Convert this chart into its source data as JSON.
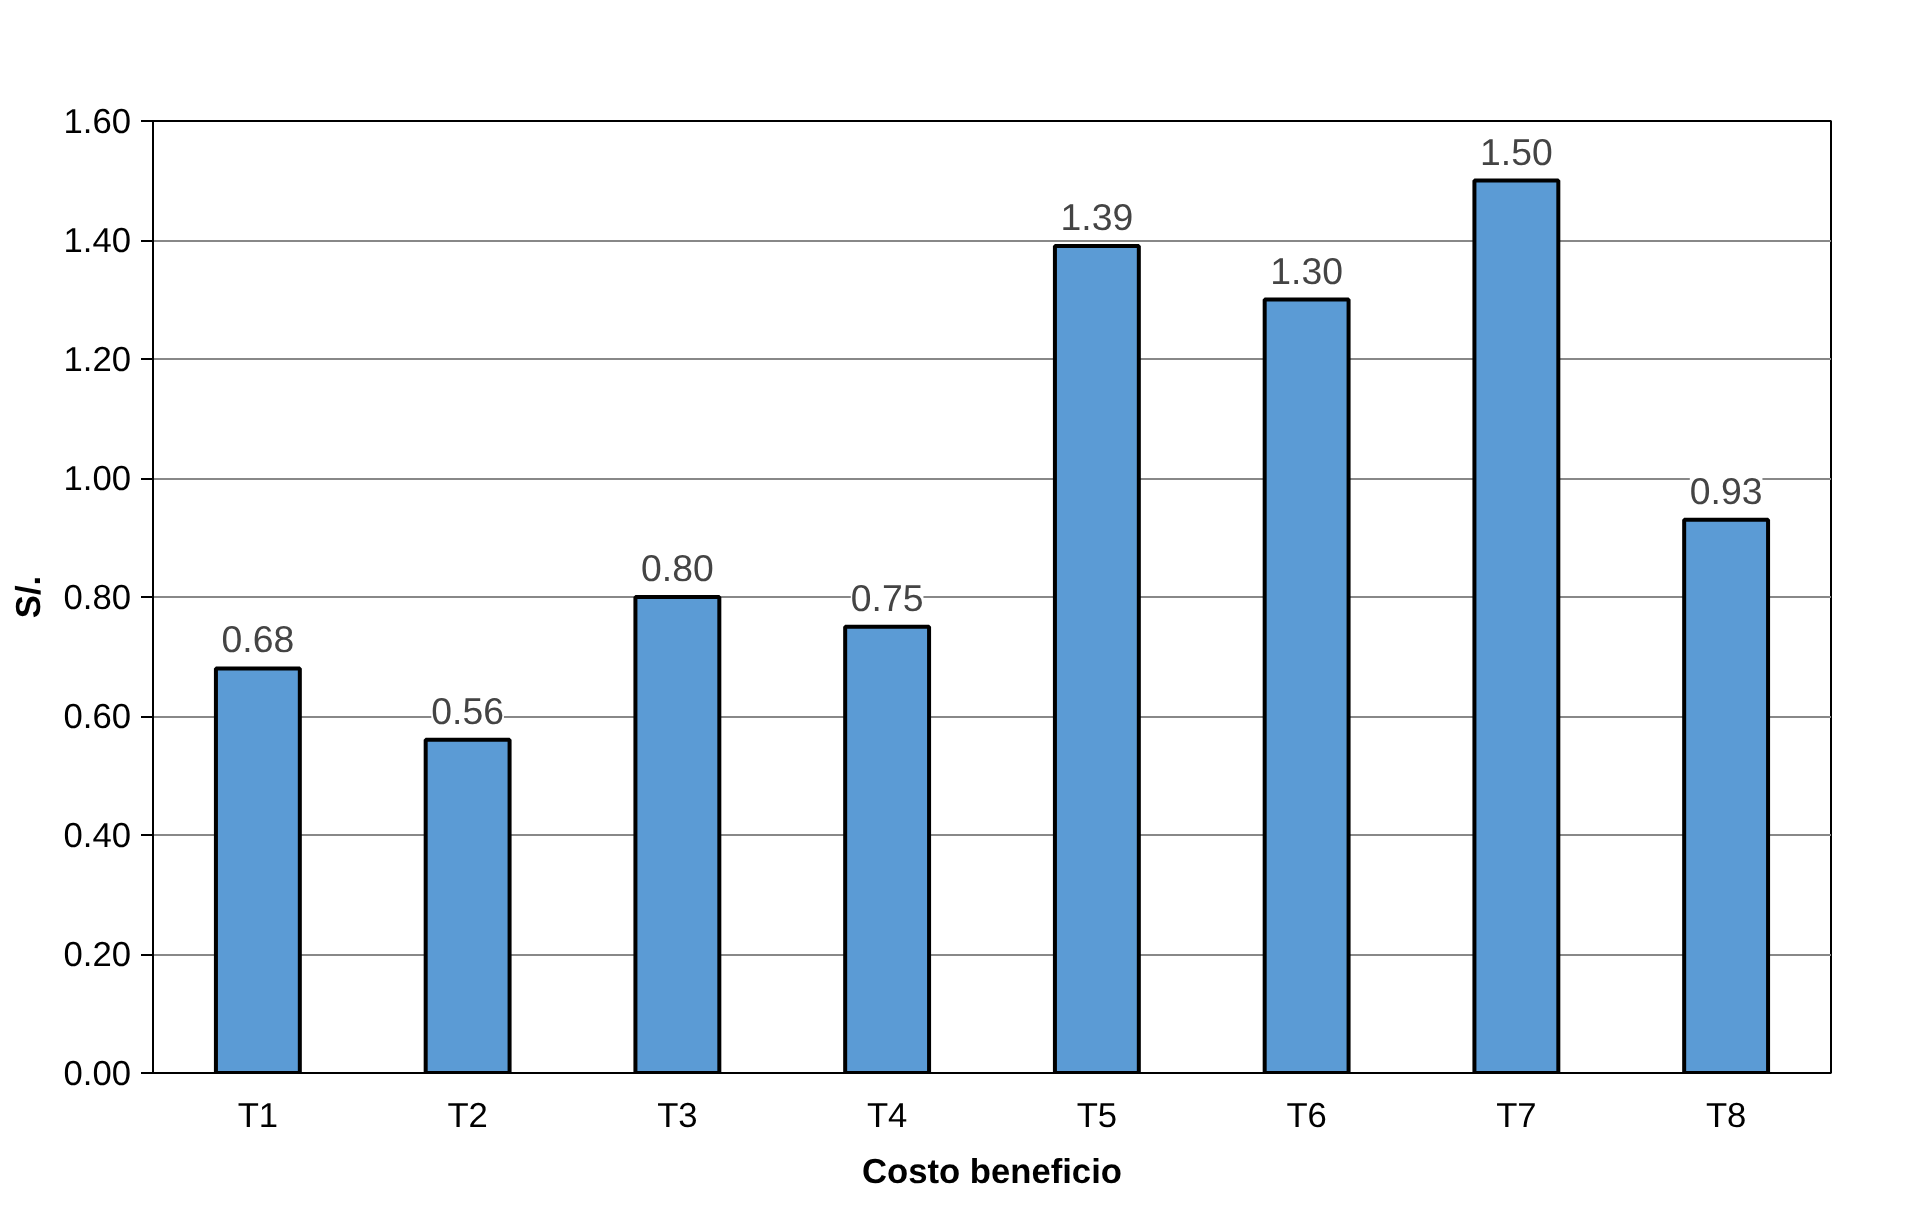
{
  "chart_data": {
    "type": "bar",
    "xlabel": "Costo beneficio",
    "ylabel": "S/.",
    "categories": [
      "T1",
      "T2",
      "T3",
      "T4",
      "T5",
      "T6",
      "T7",
      "T8"
    ],
    "values": [
      0.68,
      0.56,
      0.8,
      0.75,
      1.39,
      1.3,
      1.5,
      0.93
    ],
    "value_labels": [
      "0.68",
      "0.56",
      "0.80",
      "0.75",
      "1.39",
      "1.30",
      "1.50",
      "0.93"
    ],
    "color": "#5b9bd5",
    "ylim": [
      0,
      1.6
    ],
    "yticks": [
      {
        "value": 0,
        "label": "0.00"
      },
      {
        "value": 0.2,
        "label": "0.20"
      },
      {
        "value": 0.4,
        "label": "0.40"
      },
      {
        "value": 0.6,
        "label": "0.60"
      },
      {
        "value": 0.8,
        "label": "0.80"
      },
      {
        "value": 1.0,
        "label": "1.00"
      },
      {
        "value": 1.2,
        "label": "1.20"
      },
      {
        "value": 1.4,
        "label": "1.40"
      },
      {
        "value": 1.6,
        "label": "1.60"
      }
    ],
    "grid": "y"
  }
}
